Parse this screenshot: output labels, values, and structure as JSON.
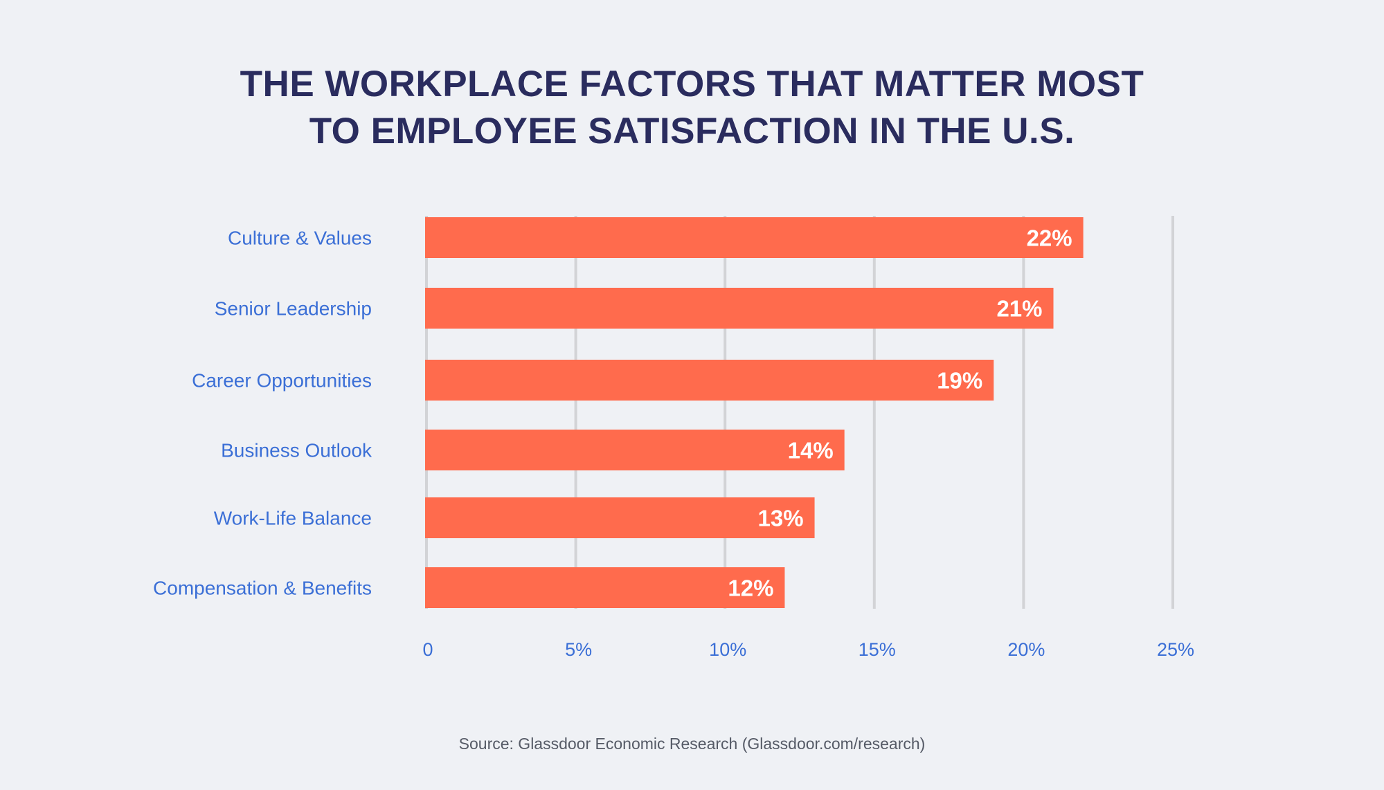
{
  "title_lines": [
    "THE WORKPLACE FACTORS THAT MATTER MOST",
    "TO EMPLOYEE SATISFACTION IN THE U.S."
  ],
  "source": "Source: Glassdoor Economic Research (Glassdoor.com/research)",
  "colors": {
    "bar": "#ff6b4d",
    "title": "#2a2c5e",
    "labels": "#3b6fd6",
    "grid": "#d2d3d6",
    "background": "#eff1f5",
    "value_labels": "#ffffff"
  },
  "chart_data": {
    "type": "bar",
    "orientation": "horizontal",
    "title": "THE WORKPLACE FACTORS THAT MATTER MOST TO EMPLOYEE SATISFACTION IN THE U.S.",
    "categories": [
      "Culture & Values",
      "Senior Leadership",
      "Career Opportunities",
      "Business Outlook",
      "Work-Life Balance",
      "Compensation & Benefits"
    ],
    "values": [
      22,
      21,
      19,
      14,
      13,
      12
    ],
    "value_labels": [
      "22%",
      "21%",
      "19%",
      "14%",
      "13%",
      "12%"
    ],
    "xlim": [
      0,
      25
    ],
    "xticks": [
      0,
      5,
      10,
      15,
      20,
      25
    ],
    "xtick_labels": [
      "0",
      "5%",
      "10%",
      "15%",
      "20%",
      "25%"
    ],
    "xlabel": "",
    "ylabel": "",
    "grid": "vertical"
  }
}
